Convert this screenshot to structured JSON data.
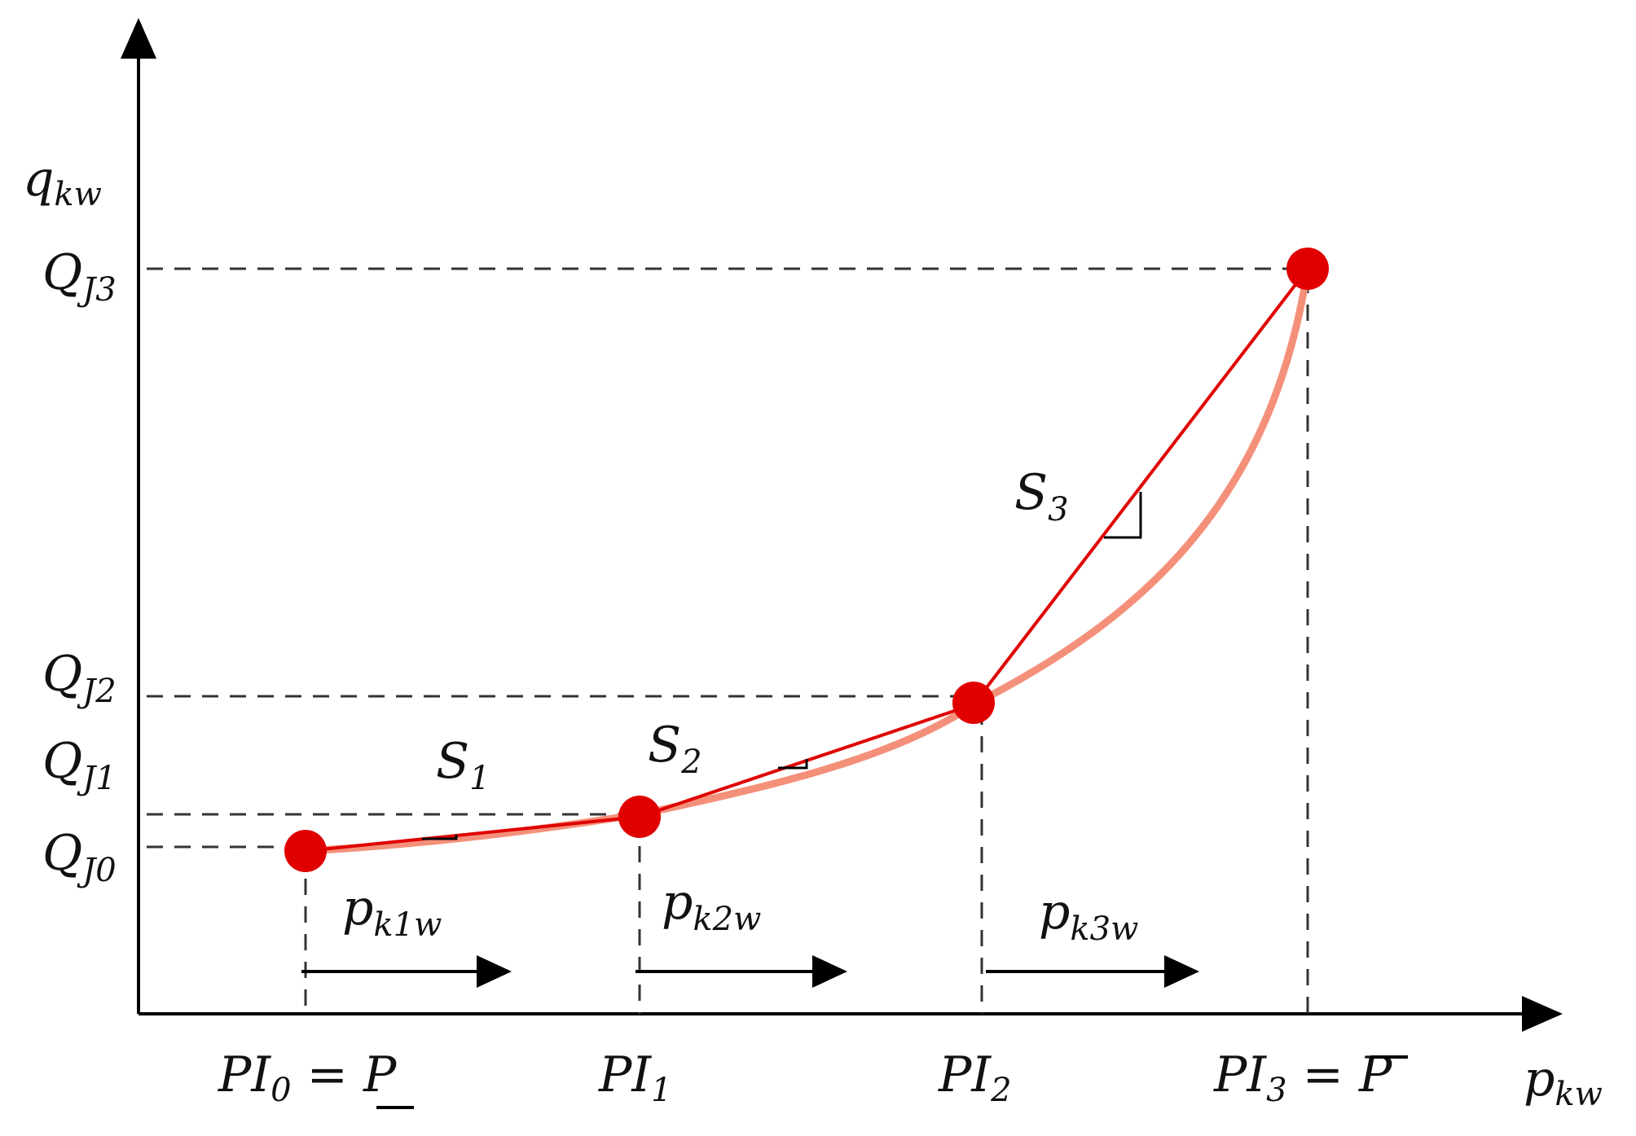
{
  "axes": {
    "y_label": "q",
    "y_label_sub": "kw",
    "x_label": "p",
    "x_label_sub": "kw"
  },
  "y_ticks": [
    {
      "main": "Q",
      "sub": "J3"
    },
    {
      "main": "Q",
      "sub": "J2"
    },
    {
      "main": "Q",
      "sub": "J1"
    },
    {
      "main": "Q",
      "sub": "J0"
    }
  ],
  "x_ticks": [
    {
      "main": "PI",
      "sub": "0",
      "suffix": " = ",
      "bound": "P"
    },
    {
      "main": "PI",
      "sub": "1"
    },
    {
      "main": "PI",
      "sub": "2"
    },
    {
      "main": "PI",
      "sub": "3",
      "suffix": " = ",
      "bound": "P"
    }
  ],
  "slopes": [
    {
      "main": "S",
      "sub": "1"
    },
    {
      "main": "S",
      "sub": "2"
    },
    {
      "main": "S",
      "sub": "3"
    }
  ],
  "segments": [
    {
      "main": "p",
      "sub": "k1w"
    },
    {
      "main": "p",
      "sub": "k2w"
    },
    {
      "main": "p",
      "sub": "k3w"
    }
  ],
  "colors": {
    "axis": "#000000",
    "dashed": "#333333",
    "linear_segment": "#e00000",
    "curve": "#f4907a",
    "point": "#e00000"
  }
}
